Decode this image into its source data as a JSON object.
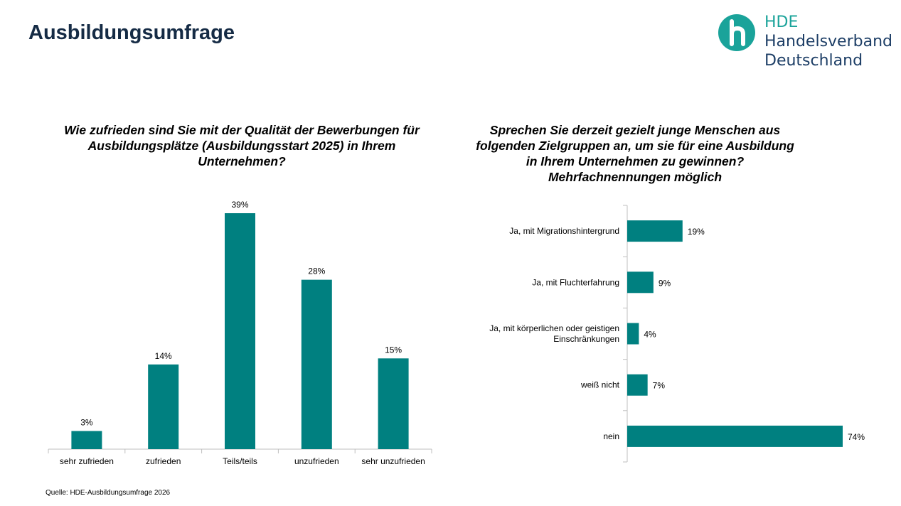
{
  "page": {
    "title": "Ausbildungsumfrage",
    "source": "Quelle: HDE-Ausbildungsumfrage 2026"
  },
  "logo": {
    "line1": "HDE",
    "line2": "Handelsverband",
    "line3": "Deutschland",
    "icon": "hde-h-icon",
    "colors": {
      "mark": "#1aa39a",
      "text": "#1d3e66"
    }
  },
  "colors": {
    "bar": "#008080",
    "axis": "#bfbfbf",
    "title": "#152b45"
  },
  "chart_data": [
    {
      "type": "bar",
      "title": "Wie zufrieden sind Sie mit der Qualität der Bewerbungen für Ausbildungsplätze (Ausbildungsstart 2025) in Ihrem Unternehmen?",
      "categories": [
        "sehr zufrieden",
        "zufrieden",
        "Teils/teils",
        "unzufrieden",
        "sehr unzufrieden"
      ],
      "values": [
        3,
        14,
        39,
        28,
        15
      ],
      "value_labels": [
        "3%",
        "14%",
        "39%",
        "28%",
        "15%"
      ],
      "unit": "%",
      "ylim": [
        0,
        39
      ],
      "orientation": "vertical",
      "grid": false
    },
    {
      "type": "bar",
      "title": "Sprechen Sie derzeit gezielt junge Menschen aus folgenden Zielgruppen an, um sie für eine Ausbildung in Ihrem Unternehmen zu gewinnen? Mehrfachnennungen möglich",
      "categories": [
        "Ja, mit Migrationshintergrund",
        "Ja, mit Fluchterfahrung",
        "Ja, mit körperlichen oder geistigen Einschränkungen",
        "weiß nicht",
        "nein"
      ],
      "values": [
        19,
        9,
        4,
        7,
        74
      ],
      "value_labels": [
        "19%",
        "9%",
        "4%",
        "7%",
        "74%"
      ],
      "unit": "%",
      "xlim": [
        0,
        74
      ],
      "orientation": "horizontal",
      "grid": false
    }
  ]
}
